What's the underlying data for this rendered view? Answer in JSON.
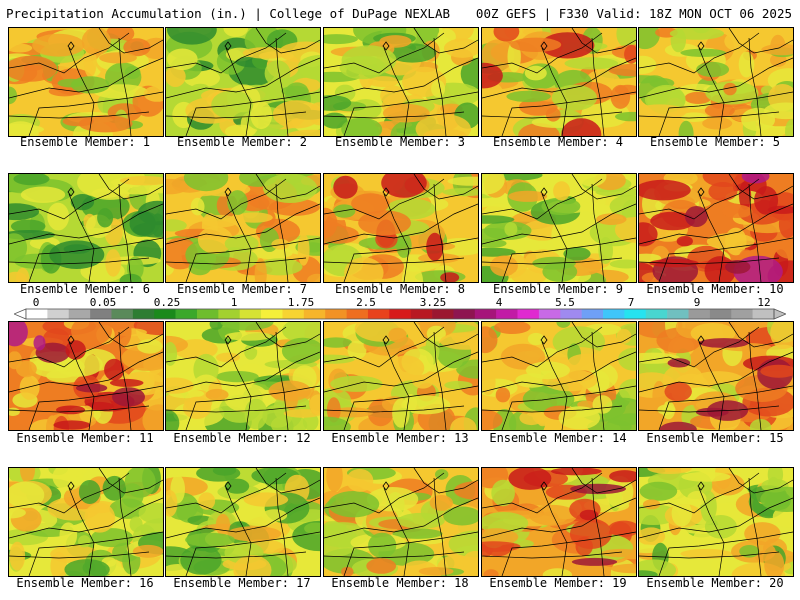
{
  "header": {
    "title": "Precipitation Accumulation (in.) | College of DuPage NEXLAB",
    "valid": "00Z GEFS | F330 Valid: 18Z MON OCT 06 2025"
  },
  "colorbar": {
    "labels": [
      "0",
      "0.05",
      "0.25",
      "1",
      "1.75",
      "2.5",
      "3.25",
      "4",
      "5.5",
      "7",
      "9",
      "12"
    ],
    "colors": [
      "#ffffff",
      "#d0d0d0",
      "#a8a8a8",
      "#808080",
      "#5a8a5a",
      "#2e7d32",
      "#1b8a1b",
      "#3ba82b",
      "#6ebd2d",
      "#a3d12f",
      "#d6e334",
      "#f5f03a",
      "#f7d431",
      "#f6b52b",
      "#f29225",
      "#ee6e20",
      "#e8421c",
      "#d71a1a",
      "#b81822",
      "#9b1730",
      "#8e1550",
      "#a6157a",
      "#c21ba6",
      "#e02ad0",
      "#c86ae6",
      "#9f8af0",
      "#6fa0f6",
      "#3fc6fa",
      "#26e3f0",
      "#48d6d0",
      "#70c0c0",
      "#9a9a9a",
      "#8a8a8a",
      "#a0a0a0",
      "#c0c0c0"
    ]
  },
  "members": [
    {
      "label": "Ensemble Member: 1",
      "intensity": 0.55
    },
    {
      "label": "Ensemble Member: 2",
      "intensity": 0.25
    },
    {
      "label": "Ensemble Member: 3",
      "intensity": 0.45
    },
    {
      "label": "Ensemble Member: 4",
      "intensity": 0.65
    },
    {
      "label": "Ensemble Member: 5",
      "intensity": 0.5
    },
    {
      "label": "Ensemble Member: 6",
      "intensity": 0.3
    },
    {
      "label": "Ensemble Member: 7",
      "intensity": 0.5
    },
    {
      "label": "Ensemble Member: 8",
      "intensity": 0.65
    },
    {
      "label": "Ensemble Member: 9",
      "intensity": 0.35
    },
    {
      "label": "Ensemble Member: 10",
      "intensity": 0.85
    },
    {
      "label": "Ensemble Member: 11",
      "intensity": 0.9
    },
    {
      "label": "Ensemble Member: 12",
      "intensity": 0.4
    },
    {
      "label": "Ensemble Member: 13",
      "intensity": 0.6
    },
    {
      "label": "Ensemble Member: 14",
      "intensity": 0.5
    },
    {
      "label": "Ensemble Member: 15",
      "intensity": 0.75
    },
    {
      "label": "Ensemble Member: 16",
      "intensity": 0.35
    },
    {
      "label": "Ensemble Member: 17",
      "intensity": 0.45
    },
    {
      "label": "Ensemble Member: 18",
      "intensity": 0.55
    },
    {
      "label": "Ensemble Member: 19",
      "intensity": 0.7
    },
    {
      "label": "Ensemble Member: 20",
      "intensity": 0.4
    }
  ]
}
